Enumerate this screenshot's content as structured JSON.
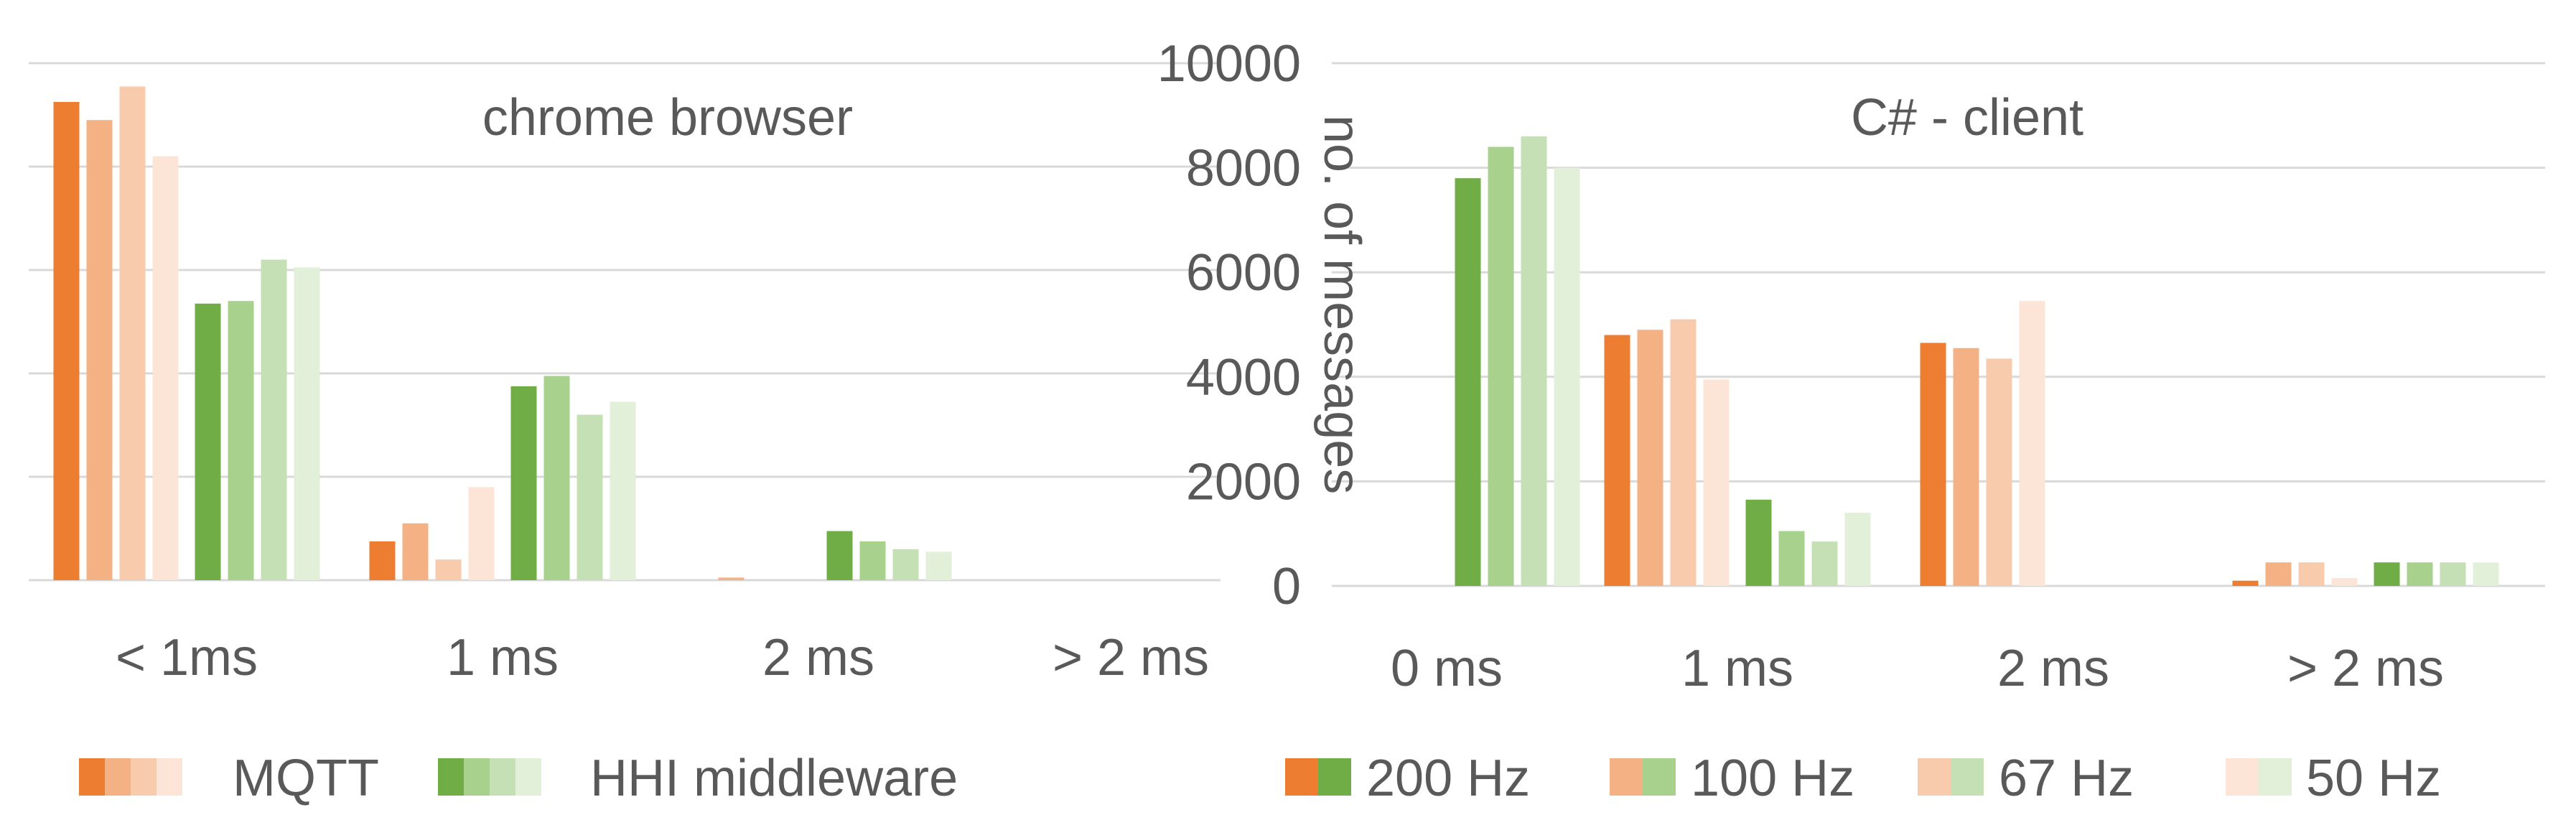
{
  "legend": {
    "mqtt_label": "MQTT",
    "hhi_label": "HHI middleware",
    "freq_labels": [
      "200 Hz",
      "100 Hz",
      "67 Hz",
      "50 Hz"
    ]
  },
  "colors": {
    "mqtt": [
      "#ED7D31",
      "#F4B183",
      "#F8CBAD",
      "#FCE4D6"
    ],
    "hhi": [
      "#70AD47",
      "#A9D18E",
      "#C5E0B4",
      "#E2F0D9"
    ],
    "grid": "#D9D9D9",
    "text": "#595959"
  },
  "chart_data": [
    {
      "type": "bar",
      "title": "chrome browser",
      "categories": [
        "< 1ms",
        "1 ms",
        "2 ms",
        "> 2 ms"
      ],
      "series": [
        {
          "name": "MQTT 200 Hz",
          "values": [
            9250,
            750,
            0,
            0
          ]
        },
        {
          "name": "MQTT 100 Hz",
          "values": [
            8900,
            1100,
            50,
            0
          ]
        },
        {
          "name": "MQTT 67 Hz",
          "values": [
            9550,
            400,
            0,
            0
          ]
        },
        {
          "name": "MQTT 50 Hz",
          "values": [
            8200,
            1800,
            0,
            0
          ]
        },
        {
          "name": "HHI middleware 200 Hz",
          "values": [
            5350,
            3750,
            950,
            0
          ]
        },
        {
          "name": "HHI middleware 100 Hz",
          "values": [
            5400,
            3950,
            750,
            0
          ]
        },
        {
          "name": "HHI middleware 67 Hz",
          "values": [
            6200,
            3200,
            600,
            0
          ]
        },
        {
          "name": "HHI middleware 50 Hz",
          "values": [
            6050,
            3450,
            550,
            0
          ]
        }
      ],
      "ylim": [
        0,
        10000
      ],
      "grid": true
    },
    {
      "type": "bar",
      "title": "C# - client",
      "categories": [
        "0 ms",
        "1 ms",
        "2 ms",
        "> 2 ms"
      ],
      "ylabel": "no. of messages",
      "yticks": [
        "0",
        "2000",
        "4000",
        "6000",
        "8000",
        "10000"
      ],
      "series": [
        {
          "name": "MQTT 200 Hz",
          "values": [
            0,
            4800,
            4650,
            100
          ]
        },
        {
          "name": "MQTT 100 Hz",
          "values": [
            0,
            4900,
            4550,
            450
          ]
        },
        {
          "name": "MQTT 67 Hz",
          "values": [
            0,
            5100,
            4350,
            450
          ]
        },
        {
          "name": "MQTT 50 Hz",
          "values": [
            0,
            3950,
            5450,
            150
          ]
        },
        {
          "name": "HHI middleware 200 Hz",
          "values": [
            7800,
            1650,
            0,
            450
          ]
        },
        {
          "name": "HHI middleware 100 Hz",
          "values": [
            8400,
            1050,
            0,
            450
          ]
        },
        {
          "name": "HHI middleware 67 Hz",
          "values": [
            8600,
            850,
            0,
            450
          ]
        },
        {
          "name": "HHI middleware 50 Hz",
          "values": [
            8000,
            1400,
            0,
            450
          ]
        }
      ],
      "ylim": [
        0,
        10000
      ],
      "grid": true
    }
  ]
}
